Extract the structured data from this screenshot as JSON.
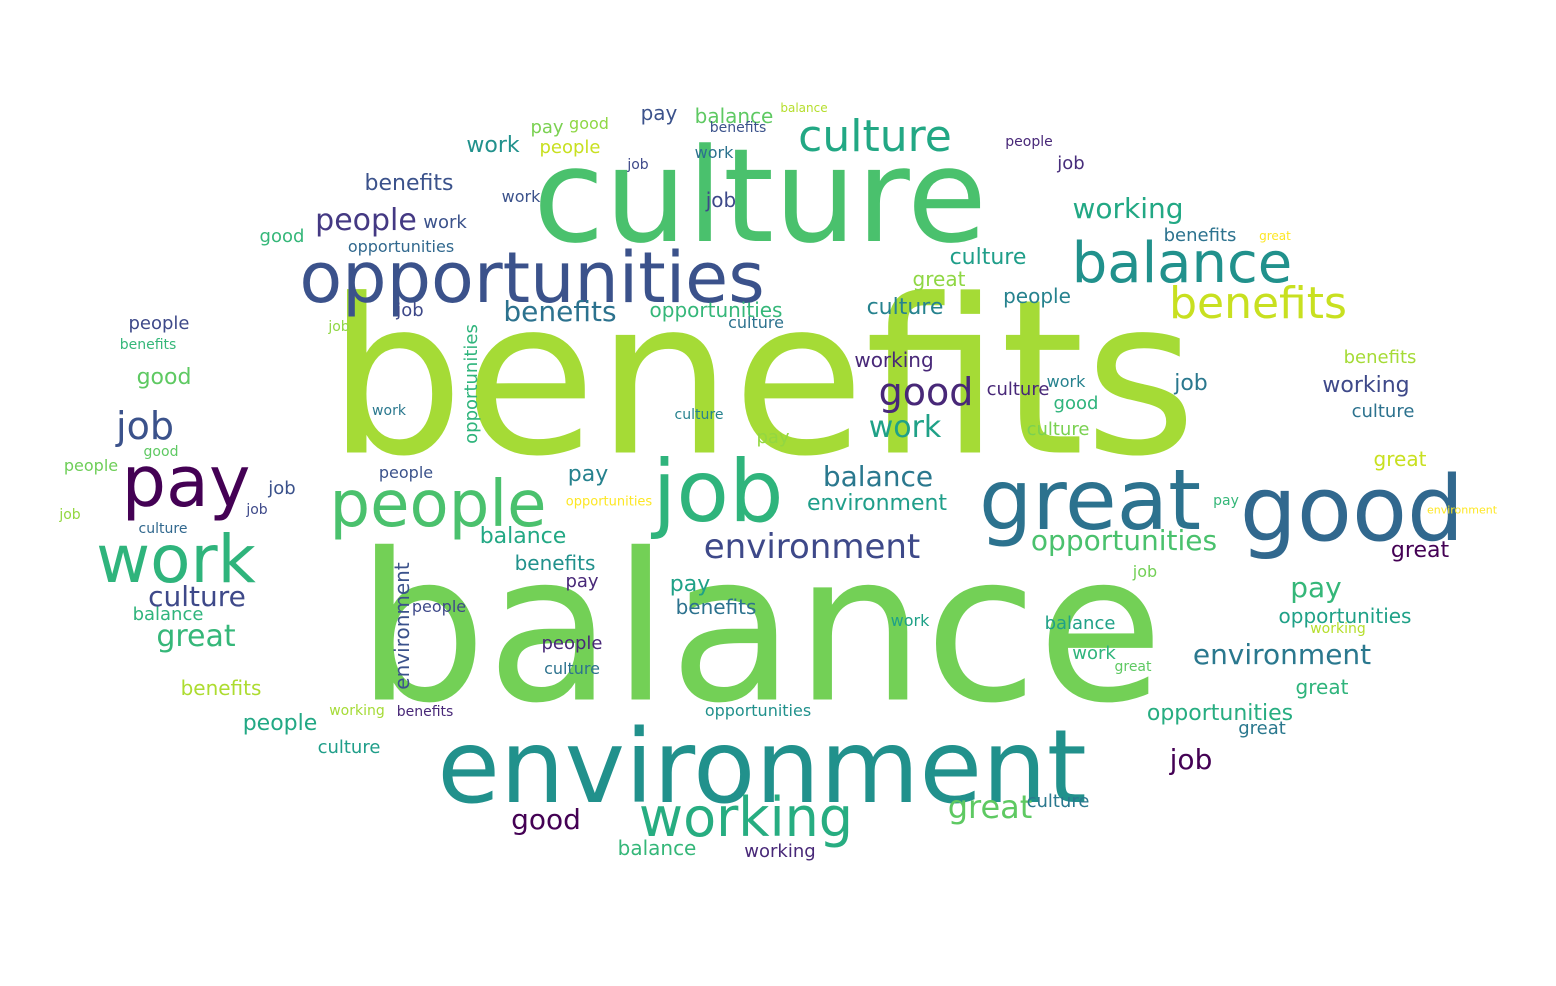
{
  "words": [
    {
      "text": "benefits",
      "color": "#a5db36"
    },
    {
      "text": "balance",
      "color": "#73d056"
    },
    {
      "text": "culture",
      "color": "#4ac16d"
    },
    {
      "text": "environment",
      "color": "#21918c"
    },
    {
      "text": "opportunities",
      "color": "#3b528b"
    },
    {
      "text": "great",
      "color": "#2c728e"
    },
    {
      "text": "good",
      "color": "#31688e"
    },
    {
      "text": "job",
      "color": "#2fb47c"
    },
    {
      "text": "people",
      "color": "#4ac16d"
    },
    {
      "text": "work",
      "color": "#2fb47c"
    },
    {
      "text": "pay",
      "color": "#440154"
    },
    {
      "text": "balance",
      "color": "#21918c"
    },
    {
      "text": "benefits",
      "color": "#c8e020"
    },
    {
      "text": "culture",
      "color": "#22a884"
    },
    {
      "text": "working",
      "color": "#27ad81"
    },
    {
      "text": "environment",
      "color": "#3e4989"
    },
    {
      "text": "opportunities",
      "color": "#4ac16d"
    },
    {
      "text": "good",
      "color": "#482878"
    },
    {
      "text": "job",
      "color": "#3b528b"
    },
    {
      "text": "people",
      "color": "#443983"
    },
    {
      "text": "work",
      "color": "#1fa187"
    },
    {
      "text": "culture",
      "color": "#3e4989"
    },
    {
      "text": "great",
      "color": "#35b779"
    },
    {
      "text": "benefits",
      "color": "#2c728e"
    },
    {
      "text": "great",
      "color": "#5ec962"
    },
    {
      "text": "working",
      "color": "#22a884"
    },
    {
      "text": "environment",
      "color": "#2a788e"
    },
    {
      "text": "opportunities",
      "color": "#27ad81"
    },
    {
      "text": "balance",
      "color": "#2a788e"
    },
    {
      "text": "benefits",
      "color": "#3b528b"
    },
    {
      "text": "culture",
      "color": "#1f9e89"
    },
    {
      "text": "good",
      "color": "#440154"
    },
    {
      "text": "pay",
      "color": "#35b779"
    },
    {
      "text": "job",
      "color": "#440154"
    },
    {
      "text": "working",
      "color": "#3e4989"
    },
    {
      "text": "work",
      "color": "#3b528b"
    },
    {
      "text": "environment",
      "color": "#1f9e89"
    },
    {
      "text": "opportunities",
      "color": "#1fa187"
    },
    {
      "text": "great",
      "color": "#2fb47c"
    },
    {
      "text": "people",
      "color": "#22a884"
    },
    {
      "text": "work",
      "color": "#21918c"
    },
    {
      "text": "balance",
      "color": "#5ec962"
    },
    {
      "text": "benefits",
      "color": "#21918c"
    },
    {
      "text": "culture",
      "color": "#26828e"
    },
    {
      "text": "job",
      "color": "#2a788e"
    },
    {
      "text": "environment",
      "color": "#fde725"
    },
    {
      "text": "benefits",
      "color": "#addc30"
    },
    {
      "text": "balance",
      "color": "#22a884"
    },
    {
      "text": "great",
      "color": "#440154"
    },
    {
      "text": "opportunities",
      "color": "#21918c"
    },
    {
      "text": "pay",
      "color": "#1fa187"
    },
    {
      "text": "good",
      "color": "#5ec962"
    },
    {
      "text": "working",
      "color": "#482878"
    },
    {
      "text": "people",
      "color": "#26828e"
    },
    {
      "text": "job",
      "color": "#3e4989"
    },
    {
      "text": "culture",
      "color": "#2c728e"
    },
    {
      "text": "opportunities",
      "color": "#2fb47c"
    },
    {
      "text": "environment",
      "color": "#3b528b"
    },
    {
      "text": "culture",
      "color": "#1f9e89"
    },
    {
      "text": "work",
      "color": "#2fb47c"
    },
    {
      "text": "people",
      "color": "#482878"
    },
    {
      "text": "benefits",
      "color": "#2c728e"
    },
    {
      "text": "good",
      "color": "#35b779"
    },
    {
      "text": "working",
      "color": "#b5de2b"
    },
    {
      "text": "job",
      "color": "#8fd744"
    },
    {
      "text": "great",
      "color": "#5ec962"
    },
    {
      "text": "culture",
      "color": "#2a788e"
    },
    {
      "text": "job",
      "color": "#3b528b"
    },
    {
      "text": "work",
      "color": "#3b528b"
    },
    {
      "text": "culture",
      "color": "#482878"
    },
    {
      "text": "benefits",
      "color": "#2c728e"
    },
    {
      "text": "people",
      "color": "#3e4989"
    },
    {
      "text": "job",
      "color": "#3e4989"
    },
    {
      "text": "good",
      "color": "#5ec962"
    },
    {
      "text": "culture",
      "color": "#31688e"
    },
    {
      "text": "work",
      "color": "#2a788e"
    },
    {
      "text": "benefits",
      "color": "#a5db36"
    },
    {
      "text": "opportunities",
      "color": "#31688e"
    },
    {
      "text": "people",
      "color": "#c8e020"
    },
    {
      "text": "good",
      "color": "#2fb47c"
    },
    {
      "text": "job",
      "color": "#93d741"
    },
    {
      "text": "work",
      "color": "#26828e"
    },
    {
      "text": "culture",
      "color": "#26828e"
    },
    {
      "text": "balance",
      "color": "#2fb47c"
    },
    {
      "text": "people",
      "color": "#482878"
    },
    {
      "text": "job",
      "color": "#472d7b"
    },
    {
      "text": "job",
      "color": "#3e4989"
    },
    {
      "text": "pay",
      "color": "#35b779"
    },
    {
      "text": "great",
      "color": "#2a788e"
    },
    {
      "text": "benefits",
      "color": "#35b779"
    },
    {
      "text": "balance",
      "color": "#1fa187"
    },
    {
      "text": "people",
      "color": "#3b528b"
    },
    {
      "text": "pay",
      "color": "#3b528b"
    },
    {
      "text": "benefits",
      "color": "#482878"
    },
    {
      "text": "people",
      "color": "#3e4989"
    },
    {
      "text": "culture",
      "color": "#2c728e"
    },
    {
      "text": "job",
      "color": "#3e4989"
    },
    {
      "text": "pay",
      "color": "#26828e"
    },
    {
      "text": "benefits",
      "color": "#3b528b"
    },
    {
      "text": "work",
      "color": "#2c728e"
    },
    {
      "text": "culture",
      "color": "#2c728e"
    },
    {
      "text": "work",
      "color": "#1fa187"
    },
    {
      "text": "great",
      "color": "#8fd744"
    },
    {
      "text": "good",
      "color": "#8fd744"
    },
    {
      "text": "people",
      "color": "#6ece58"
    },
    {
      "text": "job",
      "color": "#73d056"
    },
    {
      "text": "working",
      "color": "#482878"
    },
    {
      "text": "culture",
      "color": "#7ad151"
    },
    {
      "text": "balance",
      "color": "#35b779"
    },
    {
      "text": "pay",
      "color": "#482878"
    },
    {
      "text": "working",
      "color": "#a5db36"
    },
    {
      "text": "great",
      "color": "#fde725"
    },
    {
      "text": "great",
      "color": "#c8e020"
    },
    {
      "text": "pay",
      "color": "#7ad151"
    },
    {
      "text": "balance",
      "color": "#b5de2b"
    },
    {
      "text": "pay",
      "color": "#93d741"
    },
    {
      "text": "opportunities",
      "color": "#35b779"
    },
    {
      "text": "opportunities",
      "color": "#fde725"
    }
  ]
}
